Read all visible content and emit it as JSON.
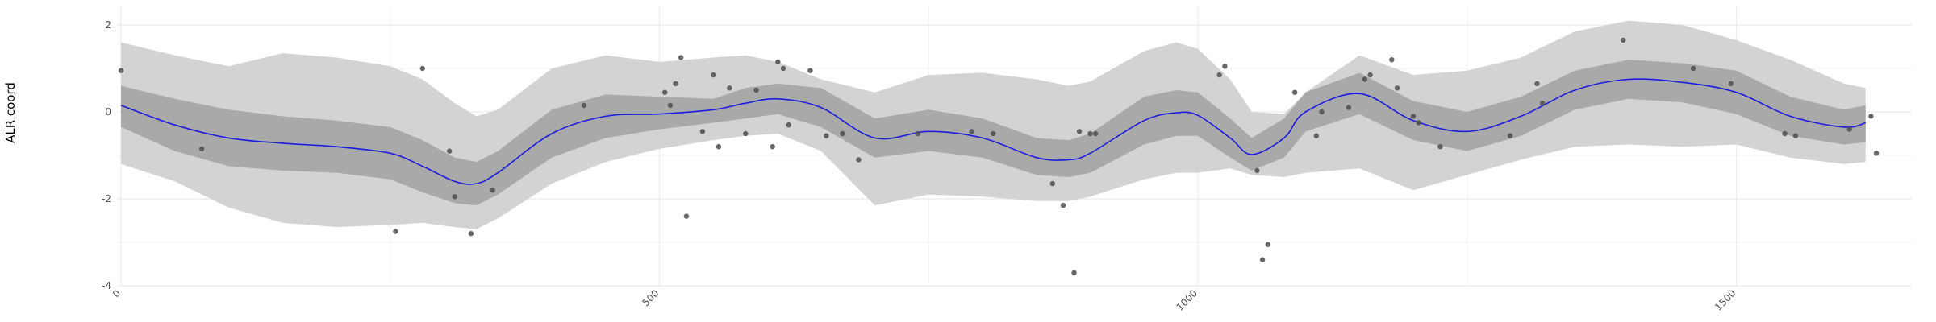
{
  "chart_data": {
    "type": "line",
    "title": "",
    "xlabel": "",
    "ylabel": "ALR coord",
    "xlim": [
      -50,
      1700
    ],
    "ylim": [
      -4,
      2.2
    ],
    "x_ticks": [
      0,
      500,
      1000,
      1500
    ],
    "x_ticks_minor": [
      250,
      750,
      1250
    ],
    "y_ticks": [
      -4,
      -2,
      0,
      2
    ],
    "y_ticks_minor": [
      -3,
      -1,
      1
    ],
    "x_tick_labels": [
      "0",
      "500",
      "1000",
      "1500"
    ],
    "y_tick_labels": [
      "-4",
      "-2",
      "0",
      "2"
    ],
    "grid": true,
    "legend": "none",
    "colors": {
      "line": "#1c1cdc",
      "inner_band": "#a9a9a9",
      "outer_band": "#d3d3d3",
      "points": "#4d4d4d",
      "grid": "#ebebeb"
    },
    "series": [
      {
        "type": "line",
        "x": [
          0,
          50,
          100,
          150,
          200,
          250,
          280,
          310,
          330,
          350,
          400,
          450,
          500,
          550,
          580,
          610,
          650,
          700,
          750,
          800,
          850,
          880,
          900,
          950,
          980,
          1000,
          1030,
          1050,
          1080,
          1100,
          1150,
          1200,
          1250,
          1300,
          1350,
          1400,
          1450,
          1500,
          1550,
          1600,
          1620
        ],
        "y": [
          0.15,
          -0.3,
          -0.6,
          -0.72,
          -0.8,
          -0.95,
          -1.25,
          -1.6,
          -1.65,
          -1.4,
          -0.5,
          -0.1,
          -0.05,
          0.05,
          0.2,
          0.3,
          0.1,
          -0.6,
          -0.45,
          -0.6,
          -1.05,
          -1.1,
          -0.95,
          -0.2,
          -0.02,
          -0.08,
          -0.6,
          -0.98,
          -0.6,
          0.0,
          0.42,
          -0.2,
          -0.45,
          -0.1,
          0.5,
          0.75,
          0.68,
          0.45,
          -0.1,
          -0.35,
          -0.25
        ]
      },
      {
        "type": "band",
        "x": [
          0,
          50,
          100,
          150,
          200,
          250,
          280,
          310,
          330,
          350,
          400,
          450,
          500,
          550,
          580,
          610,
          650,
          700,
          750,
          800,
          850,
          880,
          900,
          950,
          980,
          1000,
          1030,
          1050,
          1080,
          1100,
          1150,
          1200,
          1250,
          1300,
          1350,
          1400,
          1450,
          1500,
          1550,
          1600,
          1620
        ],
        "ymin": [
          -0.35,
          -0.9,
          -1.25,
          -1.35,
          -1.4,
          -1.55,
          -1.85,
          -2.1,
          -2.15,
          -1.9,
          -1.05,
          -0.6,
          -0.4,
          -0.25,
          -0.15,
          -0.05,
          -0.35,
          -1.05,
          -0.9,
          -1.05,
          -1.45,
          -1.5,
          -1.4,
          -0.75,
          -0.55,
          -0.55,
          -1.05,
          -1.35,
          -1.05,
          -0.45,
          -0.05,
          -0.65,
          -0.9,
          -0.55,
          0.05,
          0.3,
          0.22,
          -0.05,
          -0.55,
          -0.75,
          -0.7
        ],
        "ymax": [
          0.6,
          0.3,
          0.05,
          -0.1,
          -0.2,
          -0.35,
          -0.65,
          -1.05,
          -1.15,
          -0.9,
          0.05,
          0.4,
          0.35,
          0.3,
          0.55,
          0.65,
          0.55,
          -0.15,
          0.05,
          -0.15,
          -0.6,
          -0.65,
          -0.5,
          0.35,
          0.5,
          0.45,
          -0.15,
          -0.6,
          -0.15,
          0.45,
          0.9,
          0.25,
          0.0,
          0.35,
          0.95,
          1.2,
          1.12,
          0.95,
          0.35,
          0.05,
          0.15
        ]
      },
      {
        "type": "band",
        "x": [
          0,
          50,
          100,
          150,
          200,
          250,
          280,
          310,
          330,
          350,
          400,
          450,
          500,
          550,
          580,
          610,
          650,
          700,
          750,
          800,
          850,
          880,
          900,
          950,
          980,
          1000,
          1030,
          1050,
          1080,
          1100,
          1150,
          1200,
          1250,
          1300,
          1350,
          1400,
          1450,
          1500,
          1550,
          1600,
          1620
        ],
        "ymin": [
          -1.2,
          -1.6,
          -2.2,
          -2.55,
          -2.65,
          -2.6,
          -2.55,
          -2.65,
          -2.7,
          -2.45,
          -1.65,
          -1.15,
          -0.85,
          -0.65,
          -0.55,
          -0.5,
          -0.9,
          -2.15,
          -1.9,
          -1.95,
          -2.05,
          -2.05,
          -1.95,
          -1.55,
          -1.4,
          -1.4,
          -1.3,
          -1.45,
          -1.5,
          -1.4,
          -1.3,
          -1.8,
          -1.45,
          -1.1,
          -0.8,
          -0.75,
          -0.8,
          -0.75,
          -1.05,
          -1.2,
          -1.15
        ],
        "ymax": [
          1.6,
          1.3,
          1.05,
          1.35,
          1.25,
          1.05,
          0.75,
          0.2,
          -0.1,
          0.05,
          1.0,
          1.3,
          1.15,
          1.25,
          1.3,
          1.15,
          0.75,
          0.45,
          0.85,
          0.9,
          0.75,
          0.6,
          0.7,
          1.4,
          1.6,
          1.45,
          0.75,
          0.0,
          -0.05,
          0.45,
          1.3,
          0.85,
          0.95,
          1.25,
          1.85,
          2.1,
          2.0,
          1.65,
          1.2,
          0.65,
          0.55
        ]
      },
      {
        "type": "scatter",
        "x": [
          0,
          75,
          255,
          280,
          305,
          310,
          325,
          345,
          430,
          505,
          510,
          515,
          520,
          525,
          540,
          550,
          555,
          565,
          580,
          590,
          605,
          610,
          615,
          620,
          640,
          655,
          670,
          685,
          740,
          790,
          810,
          865,
          875,
          885,
          890,
          900,
          905,
          1020,
          1025,
          1055,
          1060,
          1065,
          1090,
          1110,
          1115,
          1140,
          1155,
          1160,
          1180,
          1185,
          1200,
          1205,
          1225,
          1290,
          1315,
          1320,
          1395,
          1460,
          1495,
          1545,
          1555,
          1605,
          1625,
          1630
        ],
        "y": [
          0.95,
          -0.85,
          -2.75,
          1.0,
          -0.9,
          -1.95,
          -2.8,
          -1.8,
          0.15,
          0.45,
          0.15,
          0.65,
          1.25,
          -2.4,
          -0.45,
          0.85,
          -0.8,
          0.55,
          -0.5,
          0.5,
          -0.8,
          1.15,
          1.0,
          -0.3,
          0.95,
          -0.55,
          -0.5,
          -1.1,
          -0.5,
          -0.45,
          -0.5,
          -1.65,
          -2.15,
          -3.7,
          -0.45,
          -0.5,
          -0.5,
          0.85,
          1.05,
          -1.35,
          -3.4,
          -3.05,
          0.45,
          -0.55,
          0.0,
          0.1,
          0.75,
          0.85,
          1.2,
          0.55,
          -0.1,
          -0.25,
          -0.8,
          -0.55,
          0.65,
          0.2,
          1.65,
          1.0,
          0.65,
          -0.5,
          -0.55,
          -0.4,
          -0.1,
          -0.95
        ]
      }
    ]
  }
}
